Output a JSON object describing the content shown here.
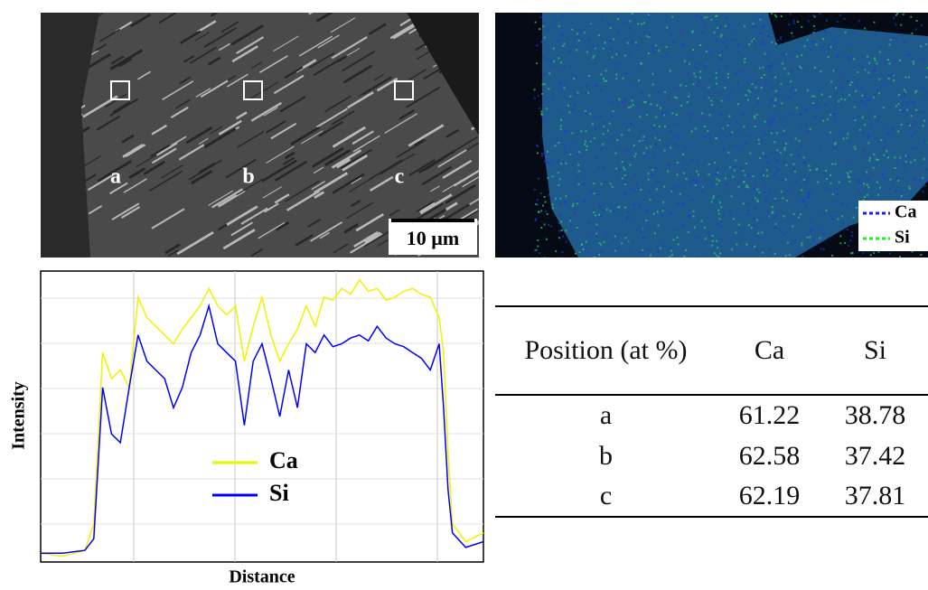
{
  "sem_image": {
    "labels": [
      "a",
      "b",
      "c"
    ],
    "scale_bar": "10 µm"
  },
  "map": {
    "legend": [
      {
        "name": "Ca",
        "color": "#1a1aff"
      },
      {
        "name": "Si",
        "color": "#22ee22"
      }
    ]
  },
  "chart_data": {
    "type": "line",
    "xlabel": "Distance",
    "ylabel": "Intensity",
    "x": [
      0,
      5,
      10,
      12,
      14,
      16,
      18,
      20,
      22,
      24,
      26,
      28,
      30,
      32,
      34,
      36,
      38,
      40,
      42,
      44,
      46,
      48,
      50,
      52,
      54,
      56,
      58,
      60,
      62,
      64,
      66,
      68,
      70,
      72,
      74,
      76,
      78,
      80,
      82,
      84,
      86,
      88,
      90,
      91,
      92,
      93,
      96,
      100
    ],
    "series": [
      {
        "name": "Ca",
        "color": "#f2f200",
        "values": [
          3,
          2,
          4,
          13,
          72,
          63,
          66,
          60,
          91,
          84,
          81,
          78,
          75,
          80,
          84,
          88,
          94,
          88,
          85,
          88,
          69,
          81,
          91,
          78,
          69,
          75,
          80,
          88,
          81,
          91,
          90,
          94,
          92,
          97,
          93,
          94,
          90,
          91,
          93,
          94,
          92,
          91,
          84,
          72,
          38,
          13,
          7,
          10
        ]
      },
      {
        "name": "Si",
        "color": "#0000ff",
        "values": [
          3,
          3,
          4,
          8,
          60,
          44,
          41,
          60,
          78,
          69,
          66,
          63,
          53,
          60,
          72,
          78,
          88,
          75,
          72,
          69,
          47,
          69,
          75,
          63,
          50,
          66,
          53,
          75,
          72,
          78,
          74,
          75,
          77,
          78,
          76,
          81,
          77,
          75,
          74,
          72,
          70,
          66,
          75,
          53,
          25,
          10,
          5,
          7
        ]
      }
    ],
    "xlim": [
      0,
      100
    ],
    "ylim": [
      0,
      100
    ],
    "grid": true
  },
  "table": {
    "header": [
      "Position (at %)",
      "Ca",
      "Si"
    ],
    "rows": [
      [
        "a",
        61.22,
        38.78
      ],
      [
        "b",
        62.58,
        37.42
      ],
      [
        "c",
        62.19,
        37.81
      ]
    ]
  }
}
